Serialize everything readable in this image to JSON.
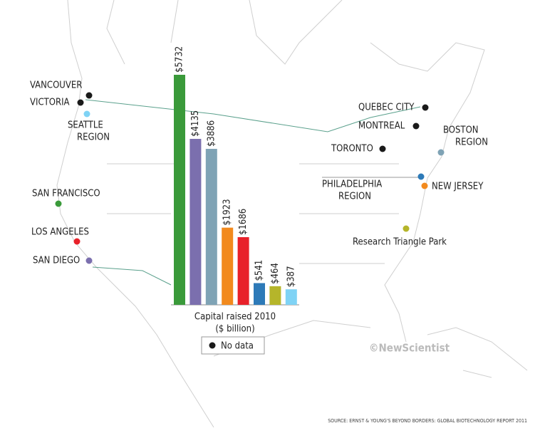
{
  "chart_data": {
    "type": "bar",
    "x_label_lines": [
      "Capital raised 2010",
      "($ billion)"
    ],
    "categories": [
      null,
      null,
      null,
      null,
      null,
      null,
      null,
      null
    ],
    "values": [
      5732,
      4135,
      3886,
      1923,
      1686,
      541,
      464,
      387
    ],
    "value_labels": [
      "$5732",
      "$4135",
      "$3886",
      "$1923",
      "$1686",
      "$541",
      "$464",
      "$387"
    ],
    "colors": [
      "#3a9a3a",
      "#7b6fae",
      "#7fa3b5",
      "#f28a1e",
      "#e8212a",
      "#2d7ab8",
      "#b5b52a",
      "#7fd3f5"
    ]
  },
  "legend": {
    "label": "No data",
    "color": "#1a1a1a"
  },
  "cities": [
    {
      "label_lines": [
        "VANCOUVER"
      ],
      "color": "#1a1a1a"
    },
    {
      "label_lines": [
        "VICTORIA"
      ],
      "color": "#1a1a1a"
    },
    {
      "label_lines": [
        "SEATTLE",
        "REGION"
      ],
      "color": "#7fd3f5"
    },
    {
      "label_lines": [
        "SAN FRANCISCO"
      ],
      "color": "#3a9a3a"
    },
    {
      "label_lines": [
        "LOS ANGELES"
      ],
      "color": "#e8212a"
    },
    {
      "label_lines": [
        "SAN DIEGO"
      ],
      "color": "#7b6fae"
    },
    {
      "label_lines": [
        "QUEBEC CITY"
      ],
      "color": "#1a1a1a"
    },
    {
      "label_lines": [
        "MONTREAL"
      ],
      "color": "#1a1a1a"
    },
    {
      "label_lines": [
        "TORONTO"
      ],
      "color": "#1a1a1a"
    },
    {
      "label_lines": [
        "BOSTON",
        "REGION"
      ],
      "color": "#7fa3b5"
    },
    {
      "label_lines": [
        "PHILADELPHIA",
        "REGION"
      ],
      "color": "#2d7ab8"
    },
    {
      "label_lines": [
        "NEW JERSEY"
      ],
      "color": "#f28a1e"
    },
    {
      "label_lines": [
        "Research Triangle Park"
      ],
      "color": "#b5b52a"
    }
  ],
  "credit": "©NewScientist",
  "source": "SOURCE: ERNST & YOUNG'S BEYOND BORDERS: GLOBAL BIOTECHNOLOGY REPORT 2011"
}
